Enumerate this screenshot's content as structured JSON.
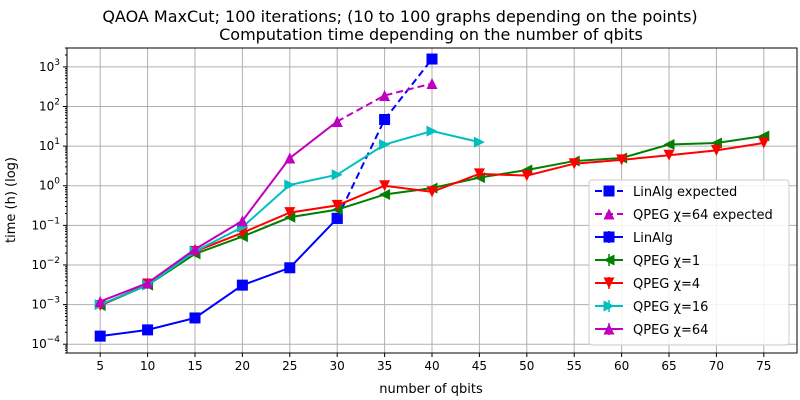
{
  "chart_data": {
    "type": "line",
    "title": "QAOA MaxCut; 100 iterations; (10 to 100 graphs depending on the points)",
    "subtitle": "Computation time depending on the number of qbits",
    "xlabel": "number of qbits",
    "ylabel": "time (h) (log)",
    "yscale": "log",
    "ylim": [
      6e-05,
      3000
    ],
    "xlim": [
      1.5,
      78.5
    ],
    "xticks": [
      5,
      10,
      15,
      20,
      25,
      30,
      35,
      40,
      45,
      50,
      55,
      60,
      65,
      70,
      75
    ],
    "yticks": [
      {
        "v": 0.0001,
        "b": "10",
        "e": "−4"
      },
      {
        "v": 0.001,
        "b": "10",
        "e": "−3"
      },
      {
        "v": 0.01,
        "b": "10",
        "e": "−2"
      },
      {
        "v": 0.1,
        "b": "10",
        "e": "−1"
      },
      {
        "v": 1,
        "b": "10",
        "e": "0"
      },
      {
        "v": 10,
        "b": "10",
        "e": "1"
      },
      {
        "v": 100,
        "b": "10",
        "e": "2"
      },
      {
        "v": 1000,
        "b": "10",
        "e": "3"
      }
    ],
    "grid": true,
    "legend_position": "lower-right",
    "series": [
      {
        "name": "LinAlg expected",
        "color": "#0000ff",
        "dash": true,
        "marker": "square",
        "x": [
          30,
          35,
          40
        ],
        "y": [
          0.15,
          47,
          1580
        ]
      },
      {
        "name": "QPEG χ=64 expected",
        "color": "#bf00bf",
        "dash": true,
        "marker": "triangle-up",
        "x": [
          30,
          35,
          40
        ],
        "y": [
          42,
          190,
          380
        ]
      },
      {
        "name": "LinAlg",
        "color": "#0000ff",
        "dash": false,
        "marker": "square",
        "x": [
          5,
          10,
          15,
          20,
          25,
          30
        ],
        "y": [
          0.00016,
          0.00023,
          0.00046,
          0.0031,
          0.0085,
          0.15
        ]
      },
      {
        "name": "QPEG χ=1",
        "color": "#008000",
        "dash": false,
        "marker": "triangle-left",
        "x": [
          5,
          10,
          15,
          20,
          25,
          30,
          35,
          40,
          45,
          50,
          55,
          60,
          65,
          70,
          75
        ],
        "y": [
          0.00095,
          0.0031,
          0.019,
          0.052,
          0.16,
          0.25,
          0.6,
          0.87,
          1.6,
          2.5,
          4.2,
          5,
          11,
          12,
          18
        ]
      },
      {
        "name": "QPEG χ=4",
        "color": "#ff0000",
        "dash": false,
        "marker": "triangle-down",
        "x": [
          5,
          10,
          15,
          20,
          25,
          30,
          35,
          40,
          45,
          50,
          55,
          60,
          65,
          70,
          75
        ],
        "y": [
          0.00095,
          0.0033,
          0.022,
          0.065,
          0.21,
          0.32,
          1.0,
          0.7,
          2.0,
          1.8,
          3.6,
          4.5,
          5.9,
          7.8,
          12
        ]
      },
      {
        "name": "QPEG χ=16",
        "color": "#00bfbf",
        "dash": false,
        "marker": "triangle-right",
        "x": [
          5,
          10,
          15,
          20,
          25,
          30,
          35,
          40,
          45
        ],
        "y": [
          0.001,
          0.0031,
          0.022,
          0.09,
          1.05,
          1.9,
          11,
          24,
          12.6
        ]
      },
      {
        "name": "QPEG χ=64",
        "color": "#bf00bf",
        "dash": false,
        "marker": "triangle-up",
        "x": [
          5,
          10,
          15,
          20,
          25,
          30
        ],
        "y": [
          0.0012,
          0.0035,
          0.025,
          0.13,
          5,
          42
        ]
      }
    ]
  }
}
